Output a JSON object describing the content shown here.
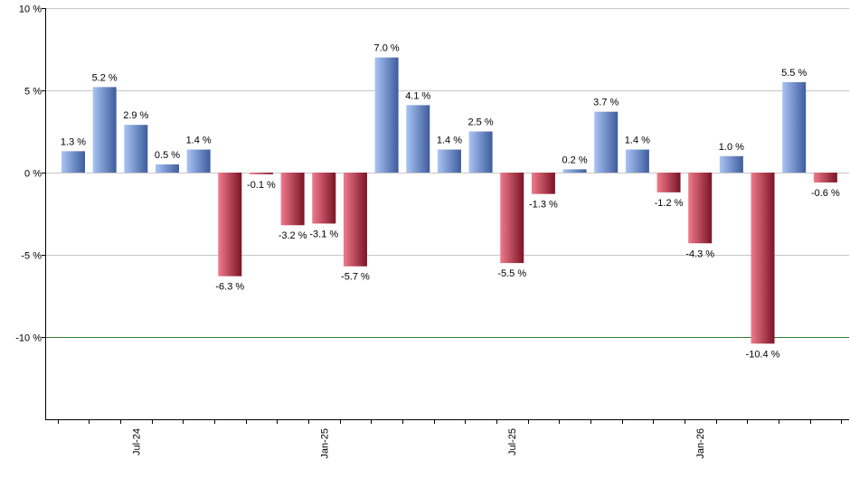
{
  "chart_data": {
    "type": "bar",
    "title": "",
    "xlabel": "",
    "ylabel": "",
    "ylim": [
      -15,
      10
    ],
    "y_ticks": [
      10,
      5,
      0,
      -5,
      -10
    ],
    "y_tick_labels": [
      "10 %",
      "5 %",
      "0 %",
      "-5 %",
      "-10 %"
    ],
    "grid": true,
    "reference_line": -10,
    "x_tick_labels": [
      {
        "label": "Jul-24",
        "index": 2.5
      },
      {
        "label": "Jan-25",
        "index": 8.5
      },
      {
        "label": "Jul-25",
        "index": 14.5
      },
      {
        "label": "Jan-26",
        "index": 20.5
      }
    ],
    "values": [
      1.3,
      5.2,
      2.9,
      0.5,
      1.4,
      -6.3,
      -0.1,
      -3.2,
      -3.1,
      -5.7,
      7.0,
      4.1,
      1.4,
      2.5,
      -5.5,
      -1.3,
      0.2,
      3.7,
      1.4,
      -1.2,
      -4.3,
      1.0,
      -10.4,
      5.5,
      -0.6
    ],
    "value_labels": [
      "1.3 %",
      "5.2 %",
      "2.9 %",
      "0.5 %",
      "1.4 %",
      "-6.3 %",
      "-0.1 %",
      "-3.2 %",
      "-3.1 %",
      "-5.7 %",
      "7.0 %",
      "4.1 %",
      "1.4 %",
      "2.5 %",
      "-5.5 %",
      "-1.3 %",
      "0.2 %",
      "3.7 %",
      "1.4 %",
      "-1.2 %",
      "-4.3 %",
      "1.0 %",
      "-10.4 %",
      "5.5 %",
      "-0.6 %"
    ],
    "colors": {
      "positive_light": "#a9c4f5",
      "positive_dark": "#3e5c9c",
      "negative_light": "#f07a8c",
      "negative_dark": "#7a1426",
      "grid": "#c8c8c8",
      "axis": "#000000",
      "reference_line": "#2e7d32"
    }
  }
}
